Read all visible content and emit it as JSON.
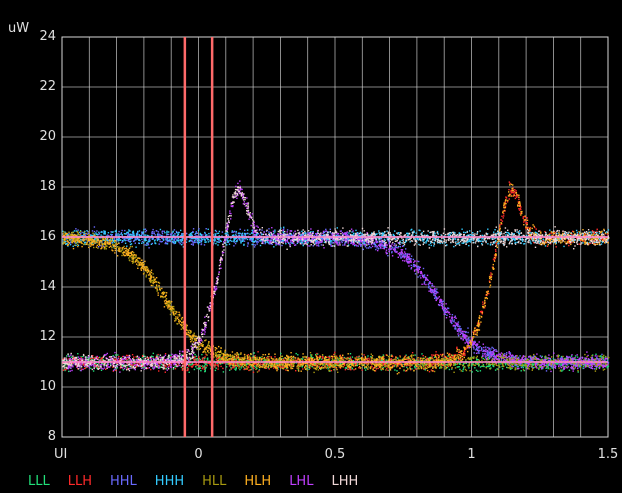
{
  "chart_data": {
    "type": "scatter",
    "unit_label": "uW",
    "x_unit_label": "UI",
    "xlim": [
      -0.5,
      1.5
    ],
    "ylim": [
      8,
      24
    ],
    "grid": true,
    "xticks": [
      "0",
      "0.5",
      "1",
      "1.5"
    ],
    "yticks": [
      "8",
      "10",
      "12",
      "14",
      "16",
      "18",
      "20",
      "22",
      "24"
    ],
    "markers": [
      -0.05,
      0.05
    ],
    "levels": {
      "high": 16.0,
      "low": 11.0
    },
    "legend_position": "bottom",
    "series": [
      {
        "name": "LLL",
        "color": "#22e07a",
        "pattern": [
          0,
          0,
          0
        ]
      },
      {
        "name": "LLH",
        "color": "#ff2a2a",
        "pattern": [
          0,
          0,
          1
        ]
      },
      {
        "name": "HHL",
        "color": "#6a6aff",
        "pattern": [
          1,
          1,
          0
        ]
      },
      {
        "name": "HHH",
        "color": "#33ccff",
        "pattern": [
          1,
          1,
          1
        ]
      },
      {
        "name": "HLL",
        "color": "#a89a10",
        "pattern": [
          1,
          0,
          0
        ]
      },
      {
        "name": "HLH",
        "color": "#ffb020",
        "pattern": [
          1,
          0,
          1
        ]
      },
      {
        "name": "LHL",
        "color": "#c040ff",
        "pattern": [
          0,
          1,
          0
        ]
      },
      {
        "name": "LHH",
        "color": "#f0d8d8",
        "pattern": [
          0,
          1,
          1
        ]
      }
    ]
  },
  "colors": {
    "grid": "#ffffff",
    "background": "#000000",
    "marker": "#ff6a6a",
    "level_line": "#ff88cc"
  }
}
